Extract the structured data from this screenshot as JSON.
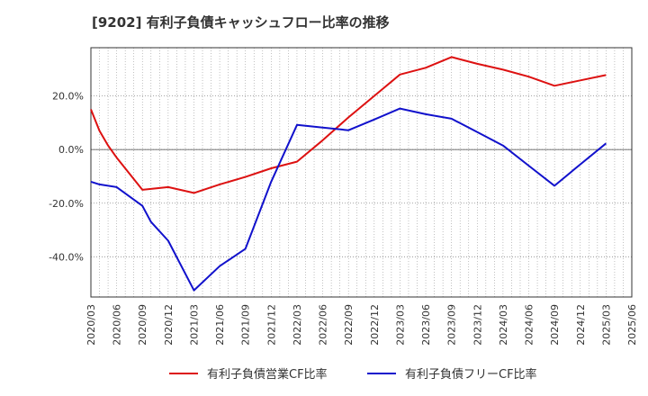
{
  "chart_data": {
    "type": "line",
    "title": "[9202]  有利子負債キャッシュフロー比率の推移",
    "xlabel": "",
    "ylabel": "",
    "ylim": [
      -55,
      38
    ],
    "y_ticks": [
      20,
      0,
      -20,
      -40
    ],
    "y_tick_labels": [
      "20.0%",
      "0.0%",
      "-20.0%",
      "-40.0%"
    ],
    "x_ticks": [
      "2020/03",
      "2020/06",
      "2020/09",
      "2020/12",
      "2021/03",
      "2021/06",
      "2021/09",
      "2021/12",
      "2022/03",
      "2022/06",
      "2022/09",
      "2022/12",
      "2023/03",
      "2023/06",
      "2023/09",
      "2023/12",
      "2024/03",
      "2024/06",
      "2024/09",
      "2024/12",
      "2025/03",
      "2025/06"
    ],
    "grid": true,
    "legend_position": "bottom",
    "series": [
      {
        "name": "有利子負債営業CF比率",
        "color": "#dd1111",
        "points": [
          [
            "2020/03",
            15.0
          ],
          [
            "2020/04",
            7.0
          ],
          [
            "2020/05",
            1.5
          ],
          [
            "2020/06",
            -3.0
          ],
          [
            "2020/09",
            -15.0
          ],
          [
            "2020/12",
            -14.0
          ],
          [
            "2021/03",
            -16.2
          ],
          [
            "2021/06",
            -13.0
          ],
          [
            "2021/09",
            -10.2
          ],
          [
            "2021/12",
            -7.0
          ],
          [
            "2022/03",
            -4.5
          ],
          [
            "2022/06",
            3.5
          ],
          [
            "2022/09",
            12.0
          ],
          [
            "2022/12",
            20.0
          ],
          [
            "2023/03",
            28.0
          ],
          [
            "2023/06",
            30.5
          ],
          [
            "2023/09",
            34.5
          ],
          [
            "2023/12",
            32.0
          ],
          [
            "2024/03",
            29.8
          ],
          [
            "2024/06",
            27.2
          ],
          [
            "2024/09",
            23.8
          ],
          [
            "2024/12",
            25.8
          ],
          [
            "2025/03",
            27.8
          ]
        ]
      },
      {
        "name": "有利子負債フリーCF比率",
        "color": "#1111cc",
        "points": [
          [
            "2020/03",
            -12.0
          ],
          [
            "2020/04",
            -13.0
          ],
          [
            "2020/06",
            -14.0
          ],
          [
            "2020/09",
            -21.0
          ],
          [
            "2020/10",
            -27.0
          ],
          [
            "2020/12",
            -34.0
          ],
          [
            "2021/03",
            -52.5
          ],
          [
            "2021/06",
            -43.5
          ],
          [
            "2021/09",
            -37.0
          ],
          [
            "2021/12",
            -12.0
          ],
          [
            "2022/03",
            9.2
          ],
          [
            "2022/06",
            8.2
          ],
          [
            "2022/09",
            7.2
          ],
          [
            "2022/12",
            11.2
          ],
          [
            "2023/03",
            15.3
          ],
          [
            "2023/06",
            13.2
          ],
          [
            "2023/09",
            11.5
          ],
          [
            "2023/12",
            6.5
          ],
          [
            "2024/03",
            1.5
          ],
          [
            "2024/06",
            -6.0
          ],
          [
            "2024/09",
            -13.5
          ],
          [
            "2024/12",
            -5.5
          ],
          [
            "2025/03",
            2.3
          ]
        ]
      }
    ]
  }
}
